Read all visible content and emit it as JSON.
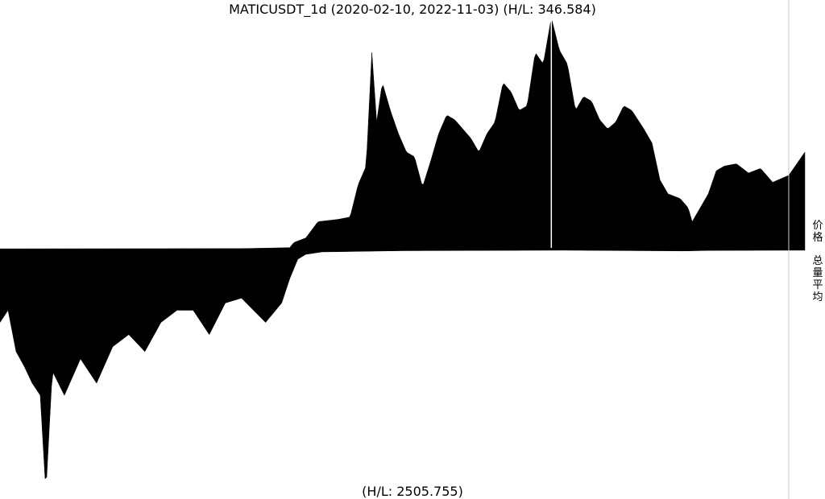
{
  "title": "MATICUSDT_1d (2020-02-10, 2022-11-03) (H/L: 346.584)",
  "bottom_label": "(H/L: 2505.755)",
  "side_labels": {
    "price": [
      "价",
      "格"
    ],
    "volume": [
      "总",
      "量",
      "平",
      "均"
    ]
  },
  "colors": {
    "bars": "#000000",
    "background": "#ffffff",
    "divider": "#000000",
    "right_rule": "#cccccc"
  },
  "chart_data": [
    {
      "type": "area",
      "name": "price",
      "x_start": "2020-02-10",
      "x_end": "2022-11-03",
      "high_low_ratio": 346.584,
      "y_range": [
        0,
        1
      ],
      "knots": [
        [
          0.0,
          0.003
        ],
        [
          0.3,
          0.004
        ],
        [
          0.36,
          0.008
        ],
        [
          0.365,
          0.03
        ],
        [
          0.38,
          0.05
        ],
        [
          0.395,
          0.12
        ],
        [
          0.42,
          0.13
        ],
        [
          0.435,
          0.14
        ],
        [
          0.445,
          0.28
        ],
        [
          0.455,
          0.36
        ],
        [
          0.462,
          0.85
        ],
        [
          0.468,
          0.55
        ],
        [
          0.475,
          0.72
        ],
        [
          0.485,
          0.6
        ],
        [
          0.495,
          0.5
        ],
        [
          0.505,
          0.42
        ],
        [
          0.515,
          0.4
        ],
        [
          0.525,
          0.27
        ],
        [
          0.535,
          0.38
        ],
        [
          0.545,
          0.5
        ],
        [
          0.555,
          0.58
        ],
        [
          0.565,
          0.56
        ],
        [
          0.575,
          0.52
        ],
        [
          0.585,
          0.48
        ],
        [
          0.595,
          0.42
        ],
        [
          0.605,
          0.5
        ],
        [
          0.615,
          0.55
        ],
        [
          0.625,
          0.72
        ],
        [
          0.635,
          0.68
        ],
        [
          0.645,
          0.6
        ],
        [
          0.655,
          0.62
        ],
        [
          0.665,
          0.85
        ],
        [
          0.675,
          0.8
        ],
        [
          0.685,
          1.0
        ],
        [
          0.695,
          0.86
        ],
        [
          0.705,
          0.8
        ],
        [
          0.715,
          0.6
        ],
        [
          0.725,
          0.66
        ],
        [
          0.735,
          0.64
        ],
        [
          0.745,
          0.56
        ],
        [
          0.755,
          0.52
        ],
        [
          0.765,
          0.55
        ],
        [
          0.775,
          0.62
        ],
        [
          0.785,
          0.6
        ],
        [
          0.8,
          0.52
        ],
        [
          0.81,
          0.46
        ],
        [
          0.82,
          0.3
        ],
        [
          0.83,
          0.24
        ],
        [
          0.845,
          0.22
        ],
        [
          0.855,
          0.18
        ],
        [
          0.86,
          0.12
        ],
        [
          0.87,
          0.18
        ],
        [
          0.88,
          0.24
        ],
        [
          0.89,
          0.34
        ],
        [
          0.9,
          0.36
        ],
        [
          0.915,
          0.37
        ],
        [
          0.93,
          0.33
        ],
        [
          0.945,
          0.35
        ],
        [
          0.96,
          0.29
        ],
        [
          0.98,
          0.32
        ],
        [
          1.0,
          0.42
        ]
      ]
    },
    {
      "type": "area",
      "name": "volume",
      "high_low_ratio": 2505.755,
      "y_range": [
        0,
        1
      ],
      "knots": [
        [
          0.0,
          0.3
        ],
        [
          0.01,
          0.25
        ],
        [
          0.02,
          0.42
        ],
        [
          0.03,
          0.48
        ],
        [
          0.04,
          0.55
        ],
        [
          0.05,
          0.6
        ],
        [
          0.057,
          1.0
        ],
        [
          0.065,
          0.5
        ],
        [
          0.08,
          0.6
        ],
        [
          0.1,
          0.45
        ],
        [
          0.12,
          0.55
        ],
        [
          0.14,
          0.4
        ],
        [
          0.16,
          0.35
        ],
        [
          0.18,
          0.42
        ],
        [
          0.2,
          0.3
        ],
        [
          0.22,
          0.25
        ],
        [
          0.24,
          0.25
        ],
        [
          0.26,
          0.35
        ],
        [
          0.28,
          0.22
        ],
        [
          0.3,
          0.2
        ],
        [
          0.33,
          0.3
        ],
        [
          0.35,
          0.22
        ],
        [
          0.36,
          0.12
        ],
        [
          0.37,
          0.04
        ],
        [
          0.38,
          0.02
        ],
        [
          0.4,
          0.01
        ],
        [
          0.5,
          0.005
        ],
        [
          0.7,
          0.003
        ],
        [
          0.85,
          0.006
        ],
        [
          0.88,
          0.004
        ],
        [
          1.0,
          0.003
        ]
      ]
    }
  ]
}
